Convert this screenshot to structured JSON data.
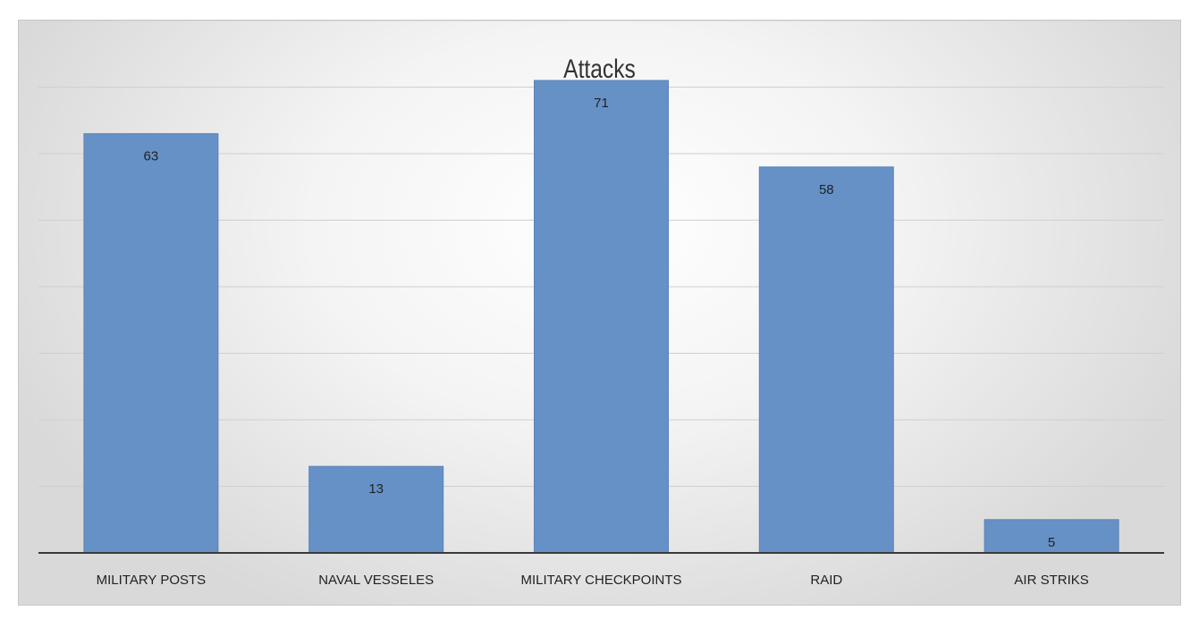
{
  "chart_data": {
    "type": "bar",
    "title": "Attacks",
    "categories": [
      "MILITARY POSTS",
      "NAVAL VESSELES",
      "MILITARY CHECKPOINTS",
      "RAID",
      "AIR STRIKS"
    ],
    "values": [
      63,
      13,
      71,
      58,
      5
    ],
    "data_labels": [
      "63",
      "13",
      "71",
      "58",
      "5"
    ],
    "ylim": [
      0,
      80
    ],
    "ytick_step": 10,
    "grid": true,
    "legend": "none",
    "colors": {
      "bar": "#6591c7",
      "bar_edge": "#5a84b8",
      "grid": "#cfcfcf",
      "axis": "#3a3a3a"
    }
  }
}
